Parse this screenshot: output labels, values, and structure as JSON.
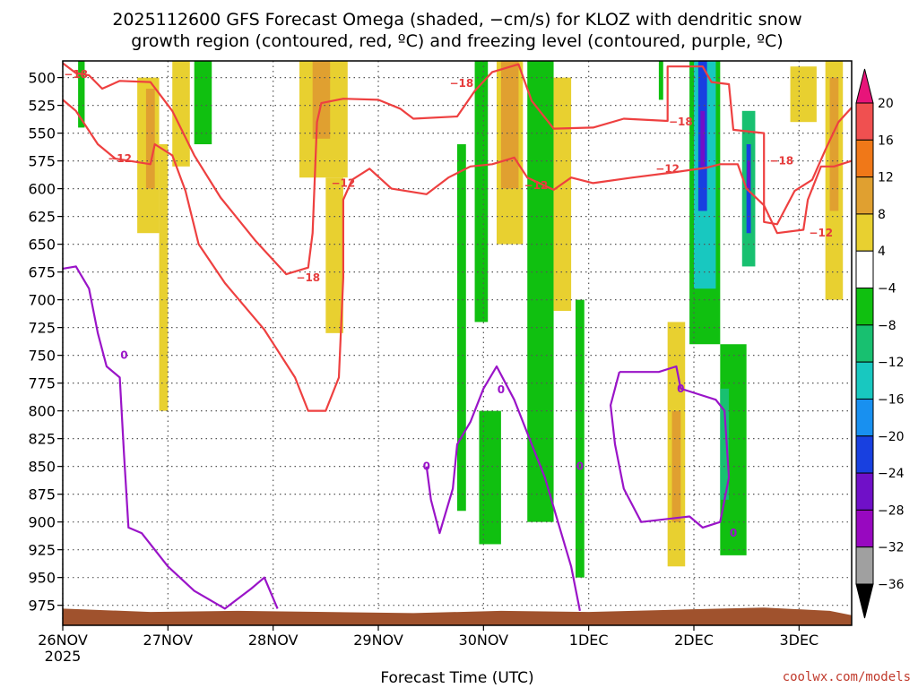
{
  "title_line1": "2025112600 GFS Forecast Omega (shaded, −cm/s) for KLOZ with dendritic snow",
  "title_line2": "growth region (contoured, red, ºC) and freezing level (contoured, purple, ºC)",
  "credit": "coolwx.com/models",
  "colors": {
    "dgz_contour": "#ee4040",
    "freezing_contour": "#9a14c8",
    "terrain": "#a0522d",
    "grid": "#555555"
  },
  "chart_data": {
    "type": "heatmap",
    "xlabel": "Forecast Time (UTC)",
    "ylabel": "",
    "x_ticks": [
      {
        "label": "26NOV",
        "sub": "2025",
        "hour": 0
      },
      {
        "label": "27NOV",
        "sub": "",
        "hour": 24
      },
      {
        "label": "28NOV",
        "sub": "",
        "hour": 48
      },
      {
        "label": "29NOV",
        "sub": "",
        "hour": 72
      },
      {
        "label": "30NOV",
        "sub": "",
        "hour": 96
      },
      {
        "label": "1DEC",
        "sub": "",
        "hour": 120
      },
      {
        "label": "2DEC",
        "sub": "",
        "hour": 144
      },
      {
        "label": "3DEC",
        "sub": "",
        "hour": 168
      }
    ],
    "xlim_hours": [
      0,
      180
    ],
    "y_ticks": [
      500,
      525,
      550,
      575,
      600,
      625,
      650,
      675,
      700,
      725,
      750,
      775,
      800,
      825,
      850,
      875,
      900,
      925,
      950,
      975
    ],
    "ylim_hpa": [
      485,
      993
    ],
    "grid": true,
    "colorbar": {
      "levels": [
        {
          "value": 20,
          "label": "20"
        },
        {
          "value": 16,
          "label": "16"
        },
        {
          "value": 12,
          "label": "12"
        },
        {
          "value": 8,
          "label": "8"
        },
        {
          "value": 4,
          "label": "4"
        },
        {
          "value": -4,
          "label": "−4"
        },
        {
          "value": -8,
          "label": "−8"
        },
        {
          "value": -12,
          "label": "−12"
        },
        {
          "value": -16,
          "label": "−16"
        },
        {
          "value": -20,
          "label": "−20"
        },
        {
          "value": -24,
          "label": "−24"
        },
        {
          "value": -28,
          "label": "−28"
        },
        {
          "value": -32,
          "label": "−32"
        },
        {
          "value": -36,
          "label": "−36"
        }
      ],
      "bin_colors": [
        "#e8147a",
        "#f05050",
        "#f07818",
        "#e0a030",
        "#e8d030",
        "#ffffff",
        "#10c010",
        "#18c070",
        "#18c8c0",
        "#1890f0",
        "#1840e0",
        "#7010c8",
        "#9808c0",
        "#a0a0a0",
        "#000000"
      ]
    },
    "shaded_cells": [
      {
        "t0": 3.5,
        "t1": 5.0,
        "p0": 485,
        "p1": 545,
        "bin": 6
      },
      {
        "t0": 8,
        "t1": 12,
        "p0": 500,
        "p1": 580,
        "bin": 5
      },
      {
        "t0": 17,
        "t1": 22,
        "p0": 500,
        "p1": 640,
        "bin": 4
      },
      {
        "t0": 19,
        "t1": 21,
        "p0": 510,
        "p1": 600,
        "bin": 3
      },
      {
        "t0": 22,
        "t1": 24,
        "p0": 560,
        "p1": 800,
        "bin": 4
      },
      {
        "t0": 25,
        "t1": 29,
        "p0": 485,
        "p1": 580,
        "bin": 4
      },
      {
        "t0": 30,
        "t1": 34,
        "p0": 485,
        "p1": 560,
        "bin": 6
      },
      {
        "t0": 54,
        "t1": 65,
        "p0": 485,
        "p1": 590,
        "bin": 4
      },
      {
        "t0": 57,
        "t1": 61,
        "p0": 485,
        "p1": 555,
        "bin": 3
      },
      {
        "t0": 60,
        "t1": 64,
        "p0": 590,
        "p1": 730,
        "bin": 4
      },
      {
        "t0": 90,
        "t1": 92,
        "p0": 560,
        "p1": 890,
        "bin": 6
      },
      {
        "t0": 94,
        "t1": 97,
        "p0": 485,
        "p1": 720,
        "bin": 6
      },
      {
        "t0": 99,
        "t1": 105,
        "p0": 485,
        "p1": 650,
        "bin": 4
      },
      {
        "t0": 100,
        "t1": 104,
        "p0": 485,
        "p1": 600,
        "bin": 3
      },
      {
        "t0": 106,
        "t1": 112,
        "p0": 485,
        "p1": 900,
        "bin": 6
      },
      {
        "t0": 95,
        "t1": 100,
        "p0": 800,
        "p1": 920,
        "bin": 6
      },
      {
        "t0": 112,
        "t1": 116,
        "p0": 500,
        "p1": 710,
        "bin": 4
      },
      {
        "t0": 117,
        "t1": 119,
        "p0": 700,
        "p1": 950,
        "bin": 6
      },
      {
        "t0": 136,
        "t1": 137,
        "p0": 485,
        "p1": 520,
        "bin": 6
      },
      {
        "t0": 138,
        "t1": 142,
        "p0": 720,
        "p1": 940,
        "bin": 4
      },
      {
        "t0": 139,
        "t1": 141,
        "p0": 800,
        "p1": 900,
        "bin": 3
      },
      {
        "t0": 143,
        "t1": 150,
        "p0": 485,
        "p1": 740,
        "bin": 6
      },
      {
        "t0": 144,
        "t1": 149,
        "p0": 485,
        "p1": 690,
        "bin": 8
      },
      {
        "t0": 145,
        "t1": 147,
        "p0": 485,
        "p1": 620,
        "bin": 10
      },
      {
        "t0": 145.5,
        "t1": 146.5,
        "p0": 530,
        "p1": 580,
        "bin": 11
      },
      {
        "t0": 150,
        "t1": 156,
        "p0": 740,
        "p1": 930,
        "bin": 6
      },
      {
        "t0": 150,
        "t1": 152,
        "p0": 780,
        "p1": 880,
        "bin": 7
      },
      {
        "t0": 155,
        "t1": 158,
        "p0": 530,
        "p1": 670,
        "bin": 7
      },
      {
        "t0": 156,
        "t1": 157,
        "p0": 560,
        "p1": 640,
        "bin": 10
      },
      {
        "t0": 156.2,
        "t1": 156.8,
        "p0": 575,
        "p1": 600,
        "bin": 11
      },
      {
        "t0": 166,
        "t1": 172,
        "p0": 490,
        "p1": 540,
        "bin": 4
      },
      {
        "t0": 174,
        "t1": 178,
        "p0": 485,
        "p1": 700,
        "bin": 4
      },
      {
        "t0": 175,
        "t1": 177,
        "p0": 500,
        "p1": 620,
        "bin": 3
      }
    ],
    "series": [
      {
        "name": "−18",
        "kind": "dgz",
        "label_points": [
          [
            3,
            497
          ],
          [
            56,
            680
          ],
          [
            91,
            505
          ],
          [
            141,
            540
          ],
          [
            164,
            575
          ]
        ],
        "points": [
          [
            0,
            487
          ],
          [
            3,
            496
          ],
          [
            6,
            498
          ],
          [
            9,
            510
          ],
          [
            13,
            503
          ],
          [
            20,
            504
          ],
          [
            25,
            530
          ],
          [
            30,
            570
          ],
          [
            36,
            608
          ],
          [
            44,
            647
          ],
          [
            51,
            677
          ],
          [
            56,
            671
          ],
          [
            57,
            640
          ],
          [
            58,
            540
          ],
          [
            59,
            523
          ],
          [
            64,
            519
          ],
          [
            72,
            520
          ],
          [
            77,
            528
          ],
          [
            80,
            537
          ],
          [
            90,
            535
          ],
          [
            94,
            512
          ],
          [
            98,
            495
          ],
          [
            104,
            488
          ],
          [
            107,
            521
          ],
          [
            112,
            546
          ],
          [
            121,
            545
          ],
          [
            128,
            537
          ],
          [
            138,
            539
          ],
          [
            138,
            490
          ],
          [
            146,
            490
          ],
          [
            148,
            504
          ],
          [
            152,
            506
          ],
          [
            153,
            547
          ],
          [
            160,
            550
          ],
          [
            160,
            630
          ],
          [
            163,
            632
          ],
          [
            167,
            602
          ],
          [
            171,
            592
          ],
          [
            174,
            565
          ],
          [
            177,
            540
          ],
          [
            180,
            527
          ]
        ]
      },
      {
        "name": "−12",
        "kind": "dgz",
        "label_points": [
          [
            13,
            573
          ],
          [
            64,
            595
          ],
          [
            108,
            597
          ],
          [
            138,
            582
          ],
          [
            173,
            640
          ]
        ],
        "points": [
          [
            0,
            520
          ],
          [
            3,
            530
          ],
          [
            8,
            560
          ],
          [
            12,
            573
          ],
          [
            20,
            578
          ],
          [
            21,
            560
          ],
          [
            25,
            570
          ],
          [
            28,
            602
          ],
          [
            31,
            650
          ],
          [
            37,
            685
          ],
          [
            46,
            727
          ],
          [
            53,
            770
          ],
          [
            56,
            800
          ],
          [
            60,
            800
          ],
          [
            63,
            770
          ],
          [
            64,
            680
          ],
          [
            64,
            610
          ],
          [
            66,
            592
          ],
          [
            70,
            582
          ],
          [
            75,
            600
          ],
          [
            83,
            605
          ],
          [
            88,
            590
          ],
          [
            93,
            580
          ],
          [
            98,
            578
          ],
          [
            103,
            572
          ],
          [
            106,
            590
          ],
          [
            112,
            601
          ],
          [
            116,
            590
          ],
          [
            121,
            595
          ],
          [
            130,
            590
          ],
          [
            140,
            585
          ],
          [
            147,
            581
          ],
          [
            150,
            578
          ],
          [
            154,
            578
          ],
          [
            156,
            600
          ],
          [
            160,
            615
          ],
          [
            163,
            640
          ],
          [
            169,
            637
          ],
          [
            170,
            610
          ],
          [
            173,
            580
          ],
          [
            176,
            580
          ],
          [
            180,
            575
          ]
        ]
      },
      {
        "name": "0",
        "kind": "freezing",
        "label_points": [
          [
            14,
            750
          ],
          [
            83,
            850
          ],
          [
            100,
            781
          ],
          [
            118,
            850
          ],
          [
            141,
            780
          ],
          [
            153,
            910
          ]
        ],
        "points": [
          [
            0,
            672
          ],
          [
            3,
            670
          ],
          [
            6,
            690
          ],
          [
            8,
            730
          ],
          [
            10,
            760
          ],
          [
            13,
            770
          ],
          [
            14,
            840
          ],
          [
            15,
            905
          ],
          [
            18,
            910
          ],
          [
            24,
            940
          ],
          [
            30,
            962
          ],
          [
            37,
            978
          ],
          [
            43,
            960
          ],
          [
            46,
            950
          ],
          [
            49,
            978
          ]
        ]
      },
      {
        "name": "0",
        "kind": "freezing",
        "label_points": [],
        "points": [
          [
            83,
            850
          ],
          [
            84,
            880
          ],
          [
            86,
            910
          ],
          [
            89,
            870
          ],
          [
            90,
            830
          ],
          [
            93,
            810
          ],
          [
            96,
            780
          ],
          [
            99,
            760
          ],
          [
            103,
            790
          ],
          [
            107,
            830
          ],
          [
            110,
            860
          ],
          [
            113,
            900
          ],
          [
            116,
            940
          ],
          [
            118,
            980
          ]
        ]
      },
      {
        "name": "0",
        "kind": "freezing",
        "label_points": [],
        "points": [
          [
            127,
            765
          ],
          [
            136,
            765
          ],
          [
            140,
            760
          ],
          [
            141,
            780
          ],
          [
            145,
            785
          ],
          [
            149,
            790
          ],
          [
            151,
            800
          ],
          [
            152,
            860
          ],
          [
            150,
            900
          ],
          [
            146,
            905
          ],
          [
            143,
            895
          ],
          [
            132,
            900
          ],
          [
            128,
            870
          ],
          [
            126,
            830
          ],
          [
            125,
            795
          ],
          [
            127,
            765
          ]
        ]
      }
    ],
    "terrain": {
      "points": [
        [
          0,
          978
        ],
        [
          20,
          981
        ],
        [
          40,
          980
        ],
        [
          60,
          981
        ],
        [
          80,
          982
        ],
        [
          100,
          980
        ],
        [
          120,
          981
        ],
        [
          140,
          979
        ],
        [
          160,
          977
        ],
        [
          175,
          980
        ],
        [
          180,
          984
        ]
      ]
    }
  }
}
